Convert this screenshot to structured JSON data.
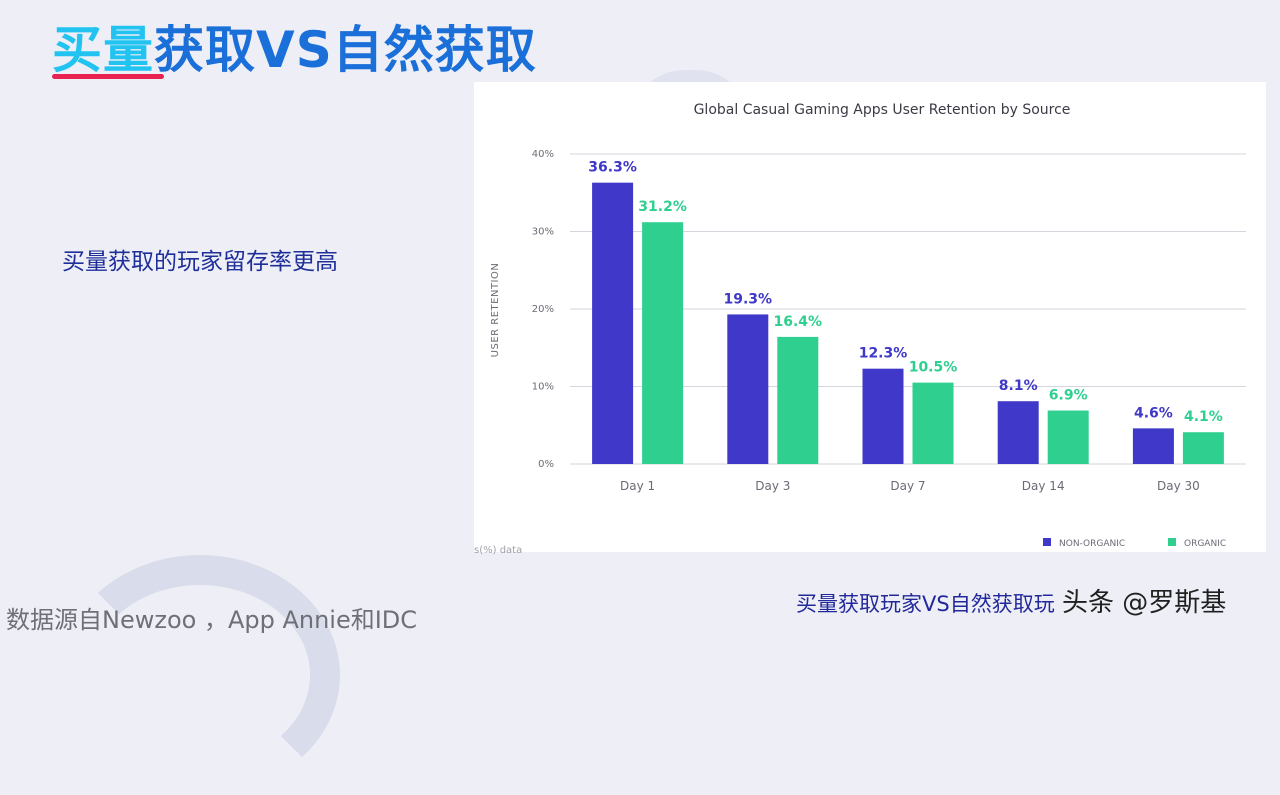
{
  "slide": {
    "title_part1": "买量",
    "title_part2": "获取VS自然获取",
    "subtitle": "买量获取的玩家留存率更高",
    "source": "数据源自Newzoo ，App Annie和IDC",
    "caption": "买量获取玩家VS自然获取玩",
    "watermark": "头条 @罗斯基",
    "partial_note": "s(%) data"
  },
  "colors": {
    "non_organic": "#3f38c8",
    "organic": "#2ecf8f"
  },
  "chart_data": {
    "type": "bar",
    "title": "Global Casual Gaming Apps User Retention by Source",
    "ylabel": "USER RETENTION",
    "xlabel": "",
    "ylim": [
      0,
      40
    ],
    "yticks": [
      "0%",
      "10%",
      "20%",
      "30%",
      "40%"
    ],
    "categories": [
      "Day 1",
      "Day 3",
      "Day 7",
      "Day 14",
      "Day 30"
    ],
    "series": [
      {
        "name": "NON-ORGANIC",
        "values": [
          36.3,
          19.3,
          12.3,
          8.1,
          4.6
        ],
        "labels": [
          "36.3%",
          "19.3%",
          "12.3%",
          "8.1%",
          "4.6%"
        ]
      },
      {
        "name": "ORGANIC",
        "values": [
          31.2,
          16.4,
          10.5,
          6.9,
          4.1
        ],
        "labels": [
          "31.2%",
          "16.4%",
          "10.5%",
          "6.9%",
          "4.1%"
        ]
      }
    ],
    "grid": true,
    "legend_position": "bottom-right"
  }
}
